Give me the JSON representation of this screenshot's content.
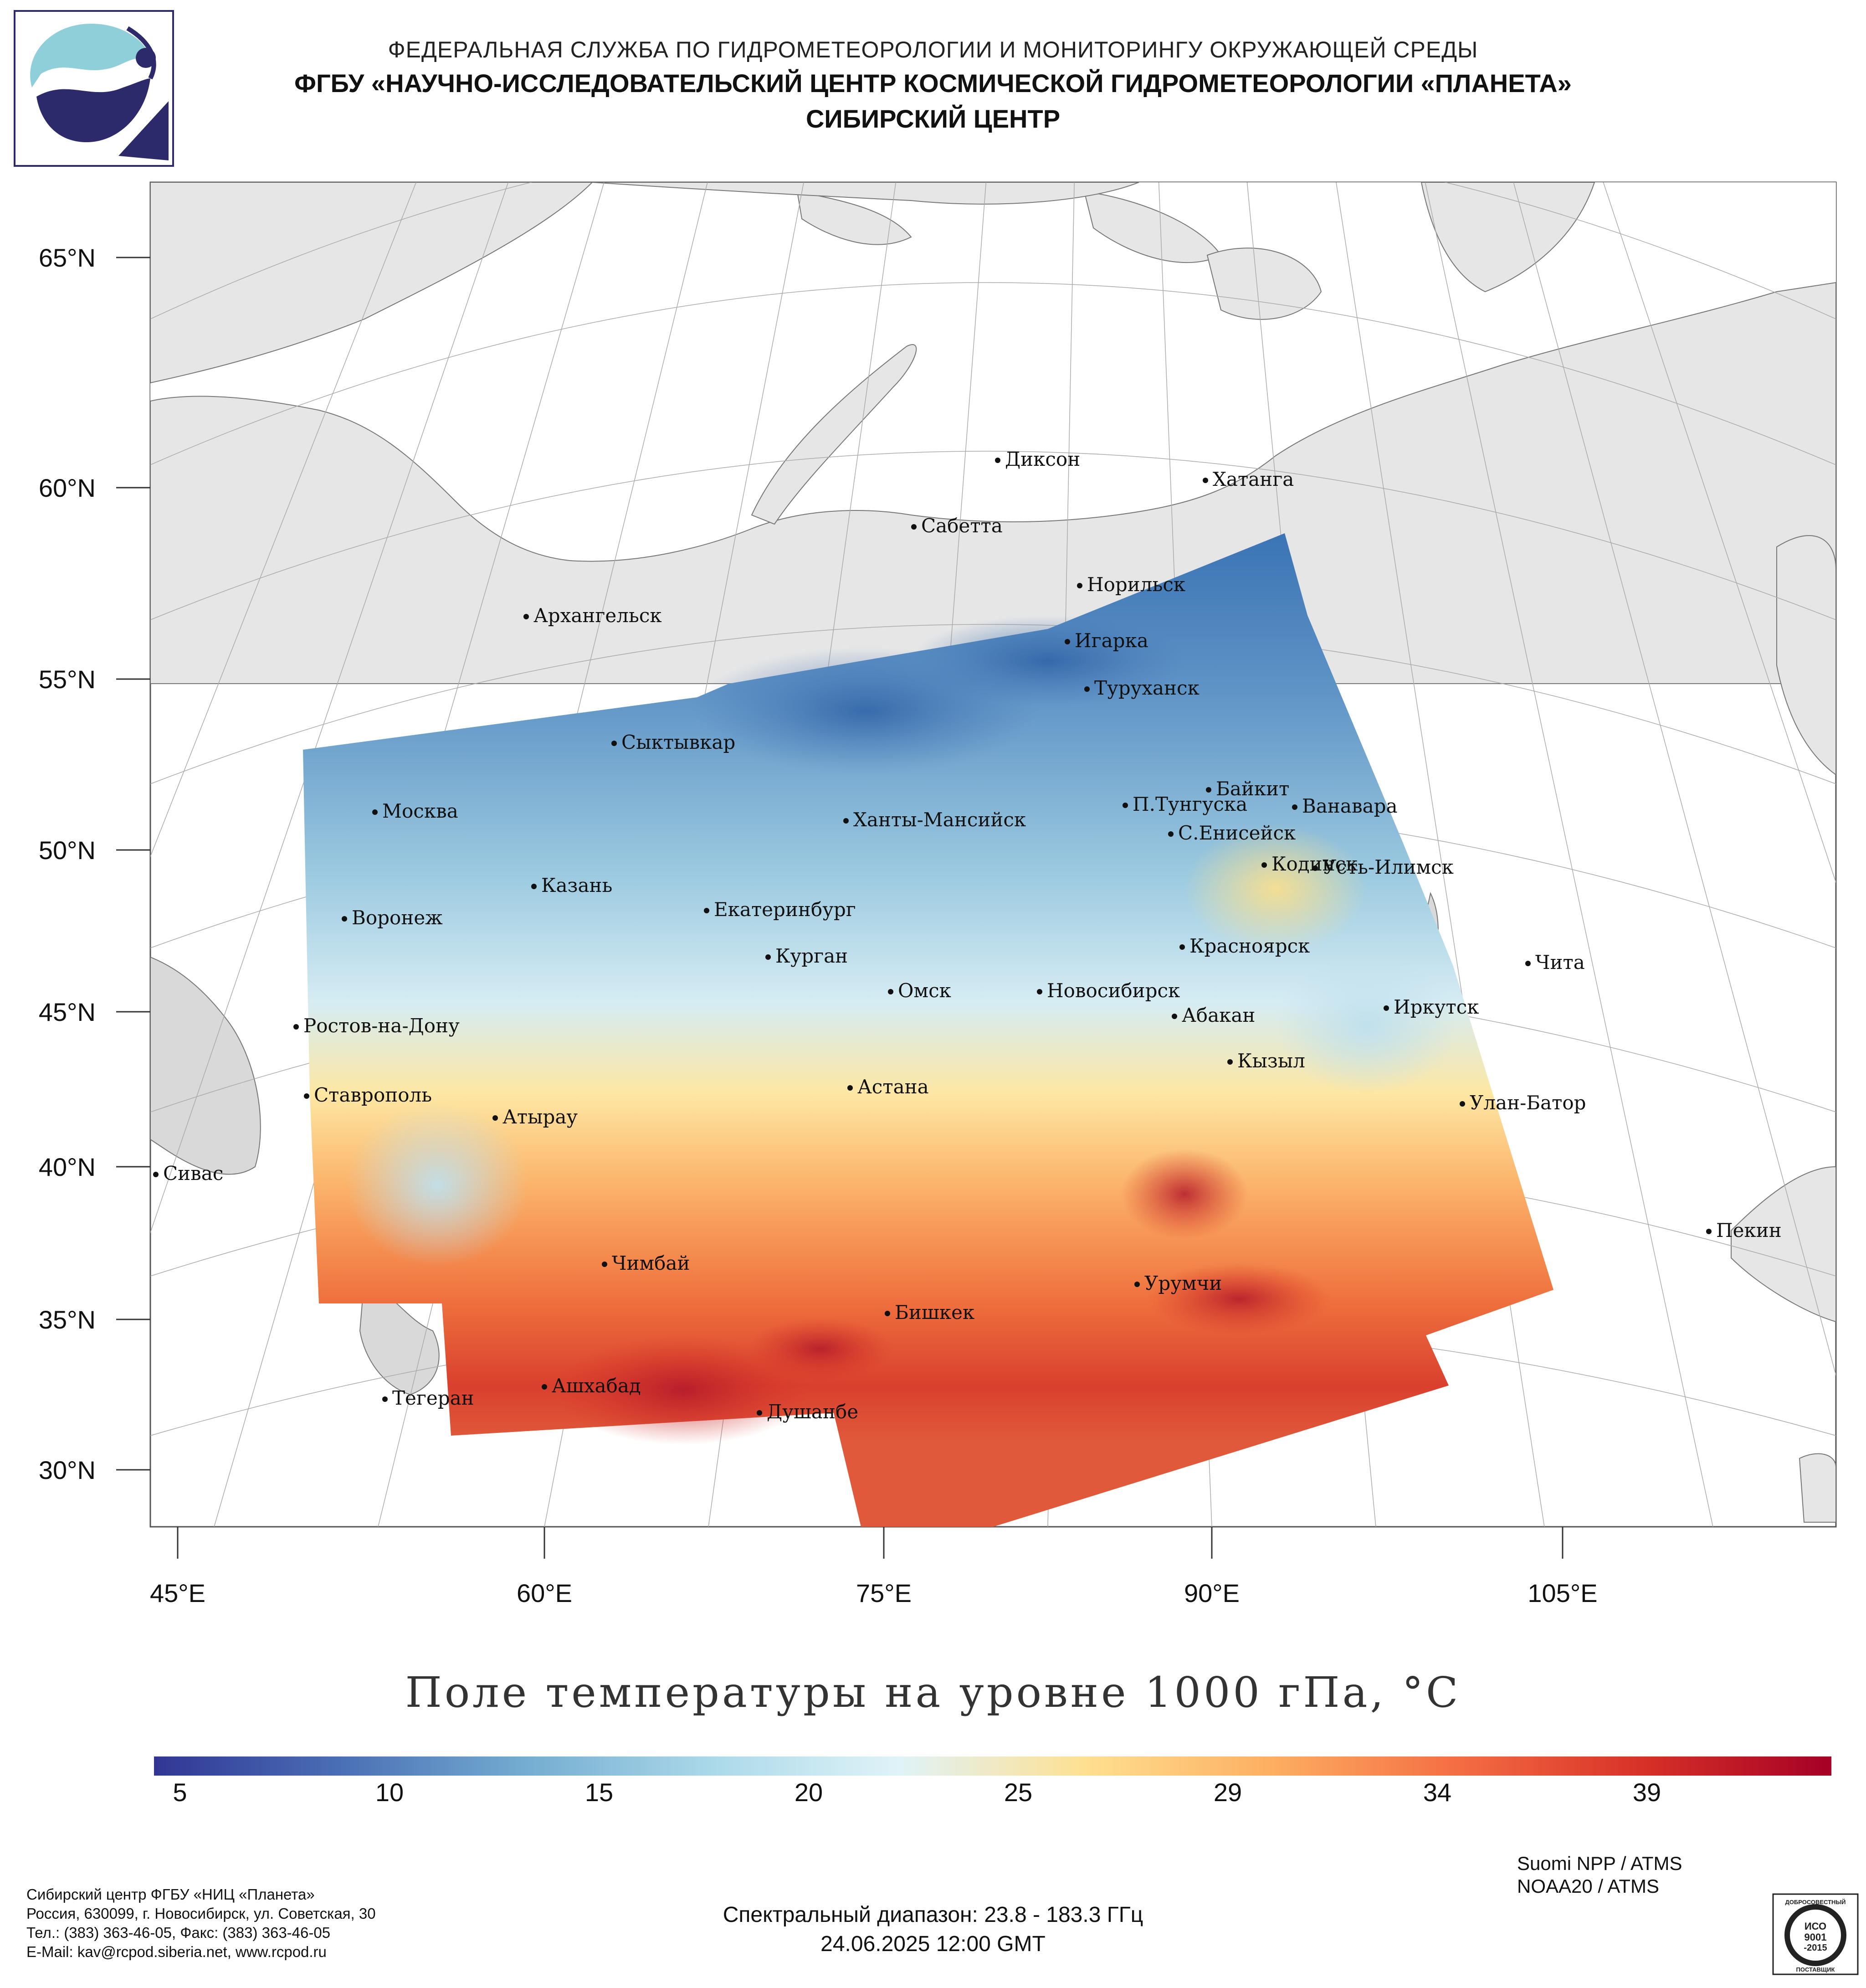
{
  "header": {
    "line1": "ФЕДЕРАЛЬНАЯ СЛУЖБА ПО ГИДРОМЕТЕОРОЛОГИИ И МОНИТОРИНГУ ОКРУЖАЮЩЕЙ СРЕДЫ",
    "line2": "ФГБУ «НАУЧНО-ИССЛЕДОВАТЕЛЬСКИЙ ЦЕНТР КОСМИЧЕСКОЙ ГИДРОМЕТЕОРОЛОГИИ «ПЛАНЕТА»",
    "line3": "СИБИРСКИЙ ЦЕНТР"
  },
  "latitude_labels": [
    "65°N",
    "60°N",
    "55°N",
    "50°N",
    "45°N",
    "40°N",
    "35°N",
    "30°N"
  ],
  "longitude_labels": [
    "45°E",
    "60°E",
    "75°E",
    "90°E",
    "105°E"
  ],
  "cities": {
    "dikson": "Диксон",
    "khatanga": "Хатанга",
    "sabetta": "Сабетта",
    "norilsk": "Норильск",
    "arkhangelsk": "Архангельск",
    "igarka": "Игарка",
    "turukhansk": "Туруханск",
    "syktyvkar": "Сыктывкар",
    "baykit": "Байкит",
    "moskva": "Москва",
    "p_tunguska": "П.Тунгуска",
    "vanavara": "Ванавара",
    "khanty_mansiysk": "Ханты-Мансийск",
    "s_eniseysk": "С.Енисейск",
    "kodinsk": "Кодинск",
    "ust_ilimsk": "Усть-Илимск",
    "kazan": "Казань",
    "ekaterinburg": "Екатеринбург",
    "voronezh": "Воронеж",
    "krasnoyarsk": "Красноярск",
    "kurgan": "Курган",
    "chita": "Чита",
    "omsk": "Омск",
    "novosibirsk": "Новосибирск",
    "irkutsk": "Иркутск",
    "rostov": "Ростов-на-Дону",
    "abakan": "Абакан",
    "kyzyl": "Кызыл",
    "astana": "Астана",
    "stavropol": "Ставрополь",
    "ulan_bator": "Улан-Батор",
    "atyrau": "Атырау",
    "sivas": "Сивас",
    "pekin": "Пекин",
    "chimbay": "Чимбай",
    "urumchi": "Урумчи",
    "bishkek": "Бишкек",
    "ashkhabad": "Ашхабад",
    "tegeran": "Тегеран",
    "dushanbe": "Душанбе"
  },
  "map_title": "Поле температуры на уровне 1000 гПа, °C",
  "colorbar": {
    "ticks": [
      "5",
      "10",
      "15",
      "20",
      "25",
      "29",
      "34",
      "39"
    ],
    "colors": [
      "#313695",
      "#4a6fb5",
      "#74add1",
      "#abd9e9",
      "#e0f3f8",
      "#fee090",
      "#fdae61",
      "#f46d43",
      "#d73027",
      "#a50026"
    ]
  },
  "footer": {
    "org": "Сибирский центр ФГБУ «НИЦ «Планета»",
    "address": "Россия, 630099, г. Новосибирск, ул. Советская, 30",
    "phone": "Тел.: (383) 363-46-05, Факс: (383) 363-46-05",
    "email": "E-Mail: kav@rcpod.siberia.net, www.rcpod.ru",
    "spectral": "Спектральный диапазон: 23.8 - 183.3 ГГц",
    "datetime": "24.06.2025 12:00 GMT",
    "sensor1": "Suomi NPP / ATMS",
    "sensor2": "NOAA20 / ATMS"
  },
  "iso_badge": {
    "top": "ДОБРОСОВЕСТНЫЙ",
    "iso": "ИСО",
    "num": "9001",
    "year": "-2015",
    "bottom": "ПОСТАВЩИК"
  }
}
